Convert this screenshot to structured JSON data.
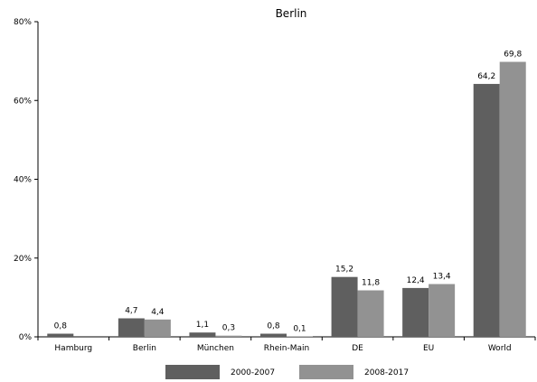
{
  "chart_data": {
    "type": "bar",
    "title": "Berlin",
    "categories": [
      "Hamburg",
      "Berlin",
      "München",
      "Rhein-Main",
      "DE",
      "EU",
      "World"
    ],
    "series": [
      {
        "name": "2000-2007",
        "color": "#5f5f5f",
        "values": [
          0.8,
          4.7,
          1.1,
          0.8,
          15.2,
          12.4,
          64.2
        ],
        "labels": [
          "0,8",
          "4,7",
          "1,1",
          "0,8",
          "15,2",
          "12,4",
          "64,2"
        ]
      },
      {
        "name": "2008-2017",
        "color": "#929292",
        "values": [
          null,
          4.4,
          0.3,
          0.1,
          11.8,
          13.4,
          69.8
        ],
        "labels": [
          "",
          "4,4",
          "0,3",
          "0,1",
          "11,8",
          "13,4",
          "69,8"
        ]
      }
    ],
    "ylim": [
      0,
      80
    ],
    "yticks": [
      0,
      20,
      40,
      60,
      80
    ],
    "ytick_labels": [
      "0%",
      "20%",
      "40%",
      "60%",
      "80%"
    ],
    "grid": false,
    "legend_position": "bottom"
  }
}
